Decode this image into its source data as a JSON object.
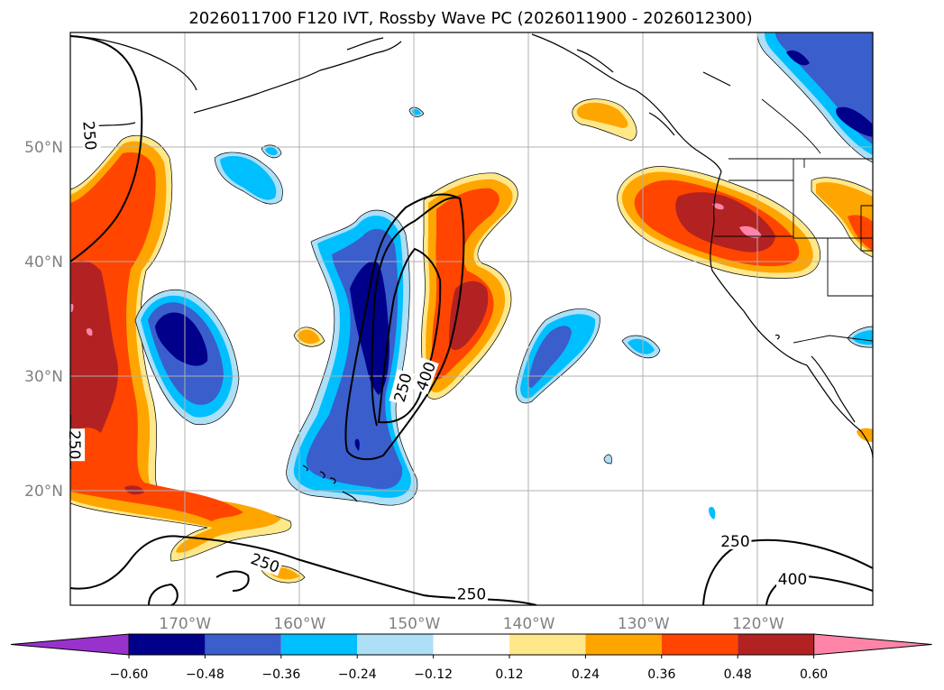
{
  "chart_data": {
    "type": "contour-map",
    "title": "2026011700 F120 IVT, Rossby Wave PC (2026011900 - 2026012300)",
    "lon_range": [
      -180,
      -110
    ],
    "lat_range": [
      10,
      60
    ],
    "grid": true,
    "lon_ticks": [
      -170,
      -160,
      -150,
      -140,
      -130,
      -120
    ],
    "lon_tick_labels": [
      "170°W",
      "160°W",
      "150°W",
      "140°W",
      "130°W",
      "120°W"
    ],
    "lat_ticks": [
      20,
      30,
      40,
      50
    ],
    "lat_tick_labels": [
      "20°N",
      "30°N",
      "40°N",
      "50°N"
    ],
    "colorbar": {
      "levels": [
        -0.6,
        -0.48,
        -0.36,
        -0.24,
        -0.12,
        0.12,
        0.24,
        0.36,
        0.48,
        0.6
      ],
      "level_labels": [
        "−0.60",
        "−0.48",
        "−0.36",
        "−0.24",
        "−0.12",
        "0.12",
        "0.24",
        "0.36",
        "0.48",
        "0.60"
      ],
      "colors": [
        "#9932CC",
        "#00008B",
        "#3A5ECC",
        "#00BFFF",
        "#ADDFF7",
        "#FFFFFF",
        "#FFE88A",
        "#FFA500",
        "#FF4500",
        "#B22222",
        "#FF85A8"
      ],
      "extend": "both"
    },
    "contour_levels": [
      250,
      400
    ],
    "contour_labels": [
      {
        "text": "250",
        "lon": -178.3,
        "lat": 51.0,
        "angle": 85
      },
      {
        "text": "250",
        "lon": -151.0,
        "lat": 29.0,
        "angle": -75
      },
      {
        "text": "400",
        "lon": -149.0,
        "lat": 30.0,
        "angle": -70
      },
      {
        "text": "250",
        "lon": -179.6,
        "lat": 24.0,
        "angle": 90
      },
      {
        "text": "250",
        "lon": -163.0,
        "lat": 13.7,
        "angle": 20
      },
      {
        "text": "250",
        "lon": -145.0,
        "lat": 11.0,
        "angle": 0
      },
      {
        "text": "250",
        "lon": -122.0,
        "lat": 15.6,
        "angle": 0
      },
      {
        "text": "400",
        "lon": -117.0,
        "lat": 12.3,
        "angle": 0
      }
    ],
    "anomaly_features": [
      {
        "name": "positive-feature-west-pacific",
        "lon": -177,
        "lat": 30,
        "sign": "positive",
        "peak": 0.6
      },
      {
        "name": "negative-feature-central-pacific",
        "lon": -153,
        "lat": 33,
        "sign": "negative",
        "peak": -0.6
      },
      {
        "name": "positive-feature-central-pacific",
        "lon": -147,
        "lat": 36,
        "sign": "positive",
        "peak": 0.48
      },
      {
        "name": "negative-feature-western-pacific",
        "lon": -170,
        "lat": 33,
        "sign": "negative",
        "peak": -0.48
      },
      {
        "name": "positive-feature-pacific-northwest",
        "lon": -125,
        "lat": 44,
        "sign": "positive",
        "peak": 0.6
      },
      {
        "name": "negative-feature-canada",
        "lon": -117,
        "lat": 55,
        "sign": "negative",
        "peak": -0.6
      },
      {
        "name": "negative-feature-east-pacific",
        "lon": -137,
        "lat": 33,
        "sign": "negative",
        "peak": -0.36
      }
    ]
  }
}
